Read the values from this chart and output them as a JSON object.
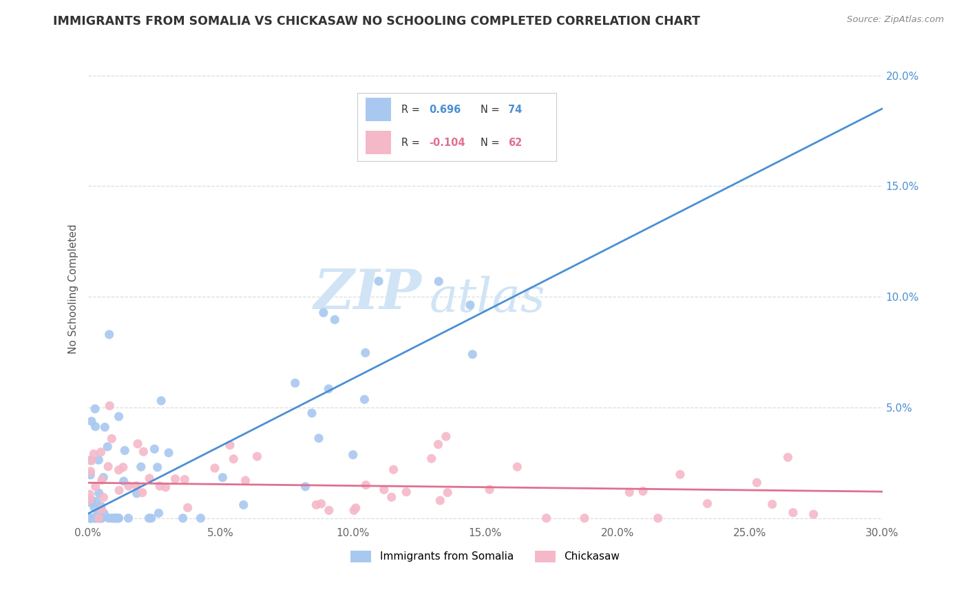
{
  "title": "IMMIGRANTS FROM SOMALIA VS CHICKASAW NO SCHOOLING COMPLETED CORRELATION CHART",
  "source": "Source: ZipAtlas.com",
  "ylabel": "No Schooling Completed",
  "xlim": [
    0.0,
    0.3
  ],
  "ylim": [
    -0.003,
    0.21
  ],
  "xticks": [
    0.0,
    0.05,
    0.1,
    0.15,
    0.2,
    0.25,
    0.3
  ],
  "yticks": [
    0.0,
    0.05,
    0.1,
    0.15,
    0.2
  ],
  "xtick_labels": [
    "0.0%",
    "5.0%",
    "10.0%",
    "15.0%",
    "20.0%",
    "25.0%",
    "30.0%"
  ],
  "ytick_labels_right": [
    "",
    "5.0%",
    "10.0%",
    "15.0%",
    "20.0%"
  ],
  "blue_color": "#A8C8F0",
  "blue_line_color": "#4A8FD4",
  "pink_color": "#F5B8C8",
  "pink_line_color": "#E07090",
  "blue_R": 0.696,
  "blue_N": 74,
  "pink_R": -0.104,
  "pink_N": 62,
  "watermark_zip": "ZIP",
  "watermark_atlas": "atlas",
  "watermark_color": "#D0E4F5",
  "legend_blue_label": "Immigrants from Somalia",
  "legend_pink_label": "Chickasaw",
  "blue_line_x0": 0.0,
  "blue_line_y0": 0.002,
  "blue_line_x1": 0.3,
  "blue_line_y1": 0.185,
  "pink_line_x0": 0.0,
  "pink_line_y0": 0.016,
  "pink_line_x1": 0.3,
  "pink_line_y1": 0.012,
  "blue_seed": 12,
  "pink_seed": 77
}
